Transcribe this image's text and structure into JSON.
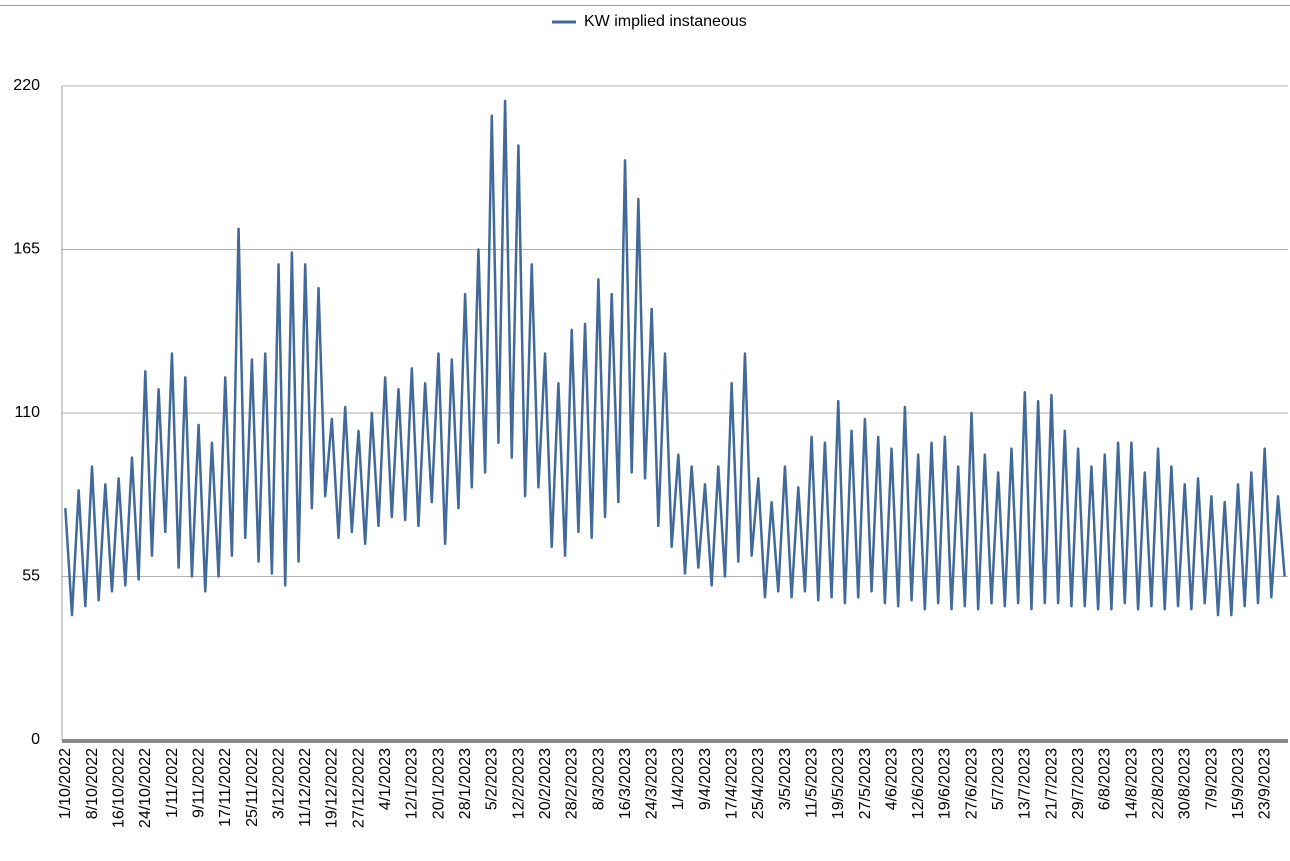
{
  "chart_data": {
    "type": "line",
    "categories": [
      "1/10/2022",
      null,
      null,
      null,
      "8/10/2022",
      null,
      null,
      null,
      "16/10/2022",
      null,
      null,
      null,
      "24/10/2022",
      null,
      null,
      null,
      "1/11/2022",
      null,
      null,
      null,
      "9/11/2022",
      null,
      null,
      null,
      "17/11/2022",
      null,
      null,
      null,
      "25/11/2022",
      null,
      null,
      null,
      "3/12/2022",
      null,
      null,
      null,
      "11/12/2022",
      null,
      null,
      null,
      "19/12/2022",
      null,
      null,
      null,
      "27/12/2022",
      null,
      null,
      null,
      "4/1/2023",
      null,
      null,
      null,
      "12/1/2023",
      null,
      null,
      null,
      "20/1/2023",
      null,
      null,
      null,
      "28/1/2023",
      null,
      null,
      null,
      "5/2/2023",
      null,
      null,
      null,
      "12/2/2023",
      null,
      null,
      null,
      "20/2/2023",
      null,
      null,
      null,
      "28/2/2023",
      null,
      null,
      null,
      "8/3/2023",
      null,
      null,
      null,
      "16/3/2023",
      null,
      null,
      null,
      "24/3/2023",
      null,
      null,
      null,
      "1/4/2023",
      null,
      null,
      null,
      "9/4/2023",
      null,
      null,
      null,
      "17/4/2023",
      null,
      null,
      null,
      "25/4/2023",
      null,
      null,
      null,
      "3/5/2023",
      null,
      null,
      null,
      "11/5/2023",
      null,
      null,
      null,
      "19/5/2023",
      null,
      null,
      null,
      "27/5/2023",
      null,
      null,
      null,
      "4/6/2023",
      null,
      null,
      null,
      "12/6/2023",
      null,
      null,
      null,
      "19/6/2023",
      null,
      null,
      null,
      "27/6/2023",
      null,
      null,
      null,
      "5/7/2023",
      null,
      null,
      null,
      "13/7/2023",
      null,
      null,
      null,
      "21/7/2023",
      null,
      null,
      null,
      "29/7/2023",
      null,
      null,
      null,
      "6/8/2023",
      null,
      null,
      null,
      "14/8/2023",
      null,
      null,
      null,
      "22/8/2023",
      null,
      null,
      null,
      "30/8/2023",
      null,
      null,
      null,
      "7/9/2023",
      null,
      null,
      null,
      "15/9/2023",
      null,
      null,
      null,
      "23/9/2023",
      null,
      null,
      null
    ],
    "series": [
      {
        "name": "KW implied instaneous",
        "color": "#41699a",
        "values": [
          78,
          42,
          84,
          45,
          92,
          47,
          86,
          50,
          88,
          52,
          95,
          54,
          124,
          62,
          118,
          70,
          130,
          58,
          122,
          55,
          106,
          50,
          100,
          55,
          122,
          62,
          172,
          68,
          128,
          60,
          130,
          56,
          160,
          52,
          164,
          60,
          160,
          78,
          152,
          82,
          108,
          68,
          112,
          70,
          104,
          66,
          110,
          72,
          122,
          75,
          118,
          74,
          125,
          72,
          120,
          80,
          130,
          66,
          128,
          78,
          150,
          85,
          165,
          90,
          210,
          100,
          215,
          95,
          200,
          82,
          160,
          85,
          130,
          65,
          120,
          62,
          138,
          70,
          140,
          68,
          155,
          75,
          150,
          80,
          195,
          90,
          182,
          88,
          145,
          72,
          130,
          65,
          96,
          56,
          92,
          58,
          86,
          52,
          92,
          55,
          120,
          60,
          130,
          62,
          88,
          48,
          80,
          50,
          92,
          48,
          85,
          50,
          102,
          47,
          100,
          48,
          114,
          46,
          104,
          48,
          108,
          50,
          102,
          46,
          98,
          45,
          112,
          47,
          96,
          44,
          100,
          46,
          102,
          44,
          92,
          45,
          110,
          44,
          96,
          46,
          90,
          45,
          98,
          46,
          117,
          44,
          114,
          46,
          116,
          46,
          104,
          45,
          98,
          45,
          92,
          44,
          96,
          44,
          100,
          46,
          100,
          44,
          90,
          45,
          98,
          44,
          92,
          45,
          86,
          44,
          88,
          46,
          82,
          42,
          80,
          42,
          86,
          45,
          90,
          46,
          98,
          48,
          82,
          55
        ]
      }
    ],
    "ylim": [
      0,
      220
    ],
    "yticks": [
      0,
      55,
      110,
      165,
      220
    ],
    "grid": true,
    "legend": "top"
  }
}
